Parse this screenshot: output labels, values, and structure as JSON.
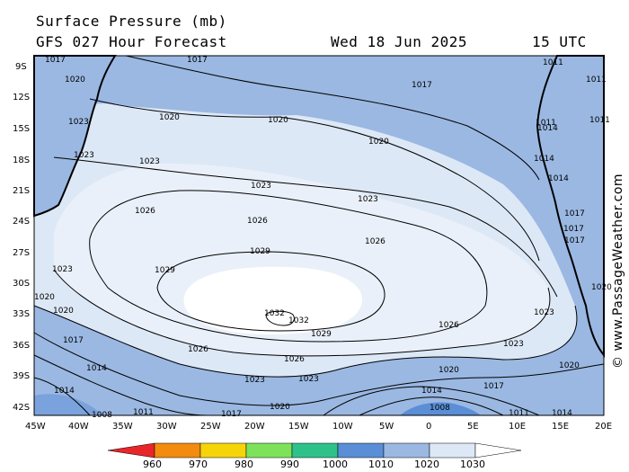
{
  "header": {
    "title": "Surface Pressure (mb)",
    "subtitle": "GFS 027 Hour Forecast",
    "date": "Wed 18 Jun 2025",
    "time": "15 UTC"
  },
  "credit": "© www.PassageWeather.com",
  "axes": {
    "lat_labels": [
      "9S",
      "12S",
      "15S",
      "18S",
      "21S",
      "24S",
      "27S",
      "30S",
      "33S",
      "36S",
      "39S",
      "42S"
    ],
    "lon_labels": [
      "45W",
      "40W",
      "35W",
      "30W",
      "25W",
      "20W",
      "15W",
      "10W",
      "5W",
      "0",
      "5E",
      "10E",
      "15E",
      "20E"
    ]
  },
  "isobar_labels": [
    "1017",
    "1017",
    "1020",
    "1017",
    "1023",
    "1020",
    "1020",
    "1020",
    "1023",
    "1023",
    "1023",
    "1023",
    "1026",
    "1026",
    "1026",
    "1023",
    "1029",
    "1029",
    "1023",
    "1020",
    "1032",
    "1032",
    "1020",
    "1026",
    "1029",
    "1017",
    "1026",
    "1026",
    "1023",
    "1014",
    "1023",
    "1023",
    "1020",
    "1020",
    "1014",
    "1017",
    "1014",
    "1008",
    "1011",
    "1017",
    "1020",
    "1008",
    "1011",
    "1014",
    "1017",
    "1017",
    "1017",
    "1014",
    "1014",
    "1011",
    "1011",
    "1011",
    "1014",
    "1020",
    "1011"
  ],
  "colorbar": {
    "labels": [
      "960",
      "970",
      "980",
      "990",
      "1000",
      "1010",
      "1020",
      "1030"
    ],
    "colors": [
      "#e8262a",
      "#f28b0e",
      "#f5d40a",
      "#7de25a",
      "#2ec28a",
      "#5a8ed6",
      "#9ab8e2",
      "#dde8f6",
      "#ffffff"
    ]
  },
  "fill_colors": {
    "ocean_low": "#9ab8e2",
    "ocean_mid": "#dde8f6",
    "high": "#ffffff",
    "trough": "#5a8ed6",
    "land": "#9ab8e2"
  }
}
